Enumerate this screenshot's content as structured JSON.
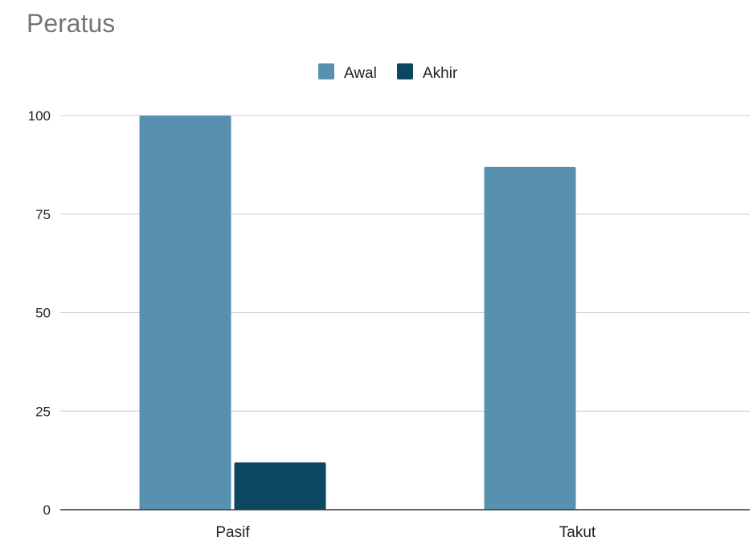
{
  "chart_data": {
    "type": "bar",
    "title": "Peratus",
    "xlabel": "",
    "ylabel": "",
    "categories": [
      "Pasif",
      "Takut"
    ],
    "series": [
      {
        "name": "Awal",
        "values": [
          100,
          87
        ],
        "color": "#5891b0"
      },
      {
        "name": "Akhir",
        "values": [
          12,
          0
        ],
        "color": "#0b4761"
      }
    ],
    "ylim": [
      0,
      100
    ],
    "yticks": [
      0,
      25,
      50,
      75,
      100
    ],
    "grid": true,
    "legend_position": "top-center"
  }
}
